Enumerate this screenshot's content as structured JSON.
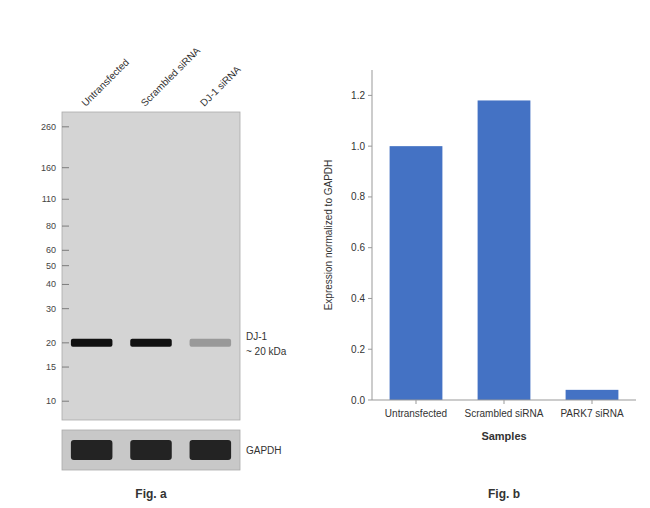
{
  "chart_data": [
    {
      "type": "western_blot",
      "title": "Fig. a",
      "categories": [
        "Untransfected",
        "Scrambled siRNA",
        "DJ-1 siRNA"
      ],
      "values": [
        20,
        20,
        20
      ],
      "colors": [
        "#111111",
        "#111111",
        "#999999"
      ],
      "log": "y",
      "ylim": [
        8,
        310
      ],
      "yticks": [
        260,
        160,
        110,
        80,
        60,
        50,
        40,
        30,
        20,
        15,
        10
      ],
      "annotations": [
        "DJ-1",
        "~ 20 kDa",
        "GAPDH"
      ]
    },
    {
      "type": "bar",
      "title": "Fig. b",
      "categories": [
        "Untransfected",
        "Scrambled siRNA",
        "PARK7 siRNA"
      ],
      "values": [
        1.0,
        1.18,
        0.04
      ],
      "color": "#4472c4",
      "xlabel": "Samples",
      "ylabel": "Expression normalized to GAPDH",
      "ylim": [
        0,
        1.3
      ],
      "yticks": [
        {
          "value": 0.0,
          "label": "0.0"
        },
        0.2,
        0.4,
        0.6,
        0.8,
        {
          "value": 1.0,
          "label": "1.0"
        },
        1.2
      ]
    }
  ]
}
